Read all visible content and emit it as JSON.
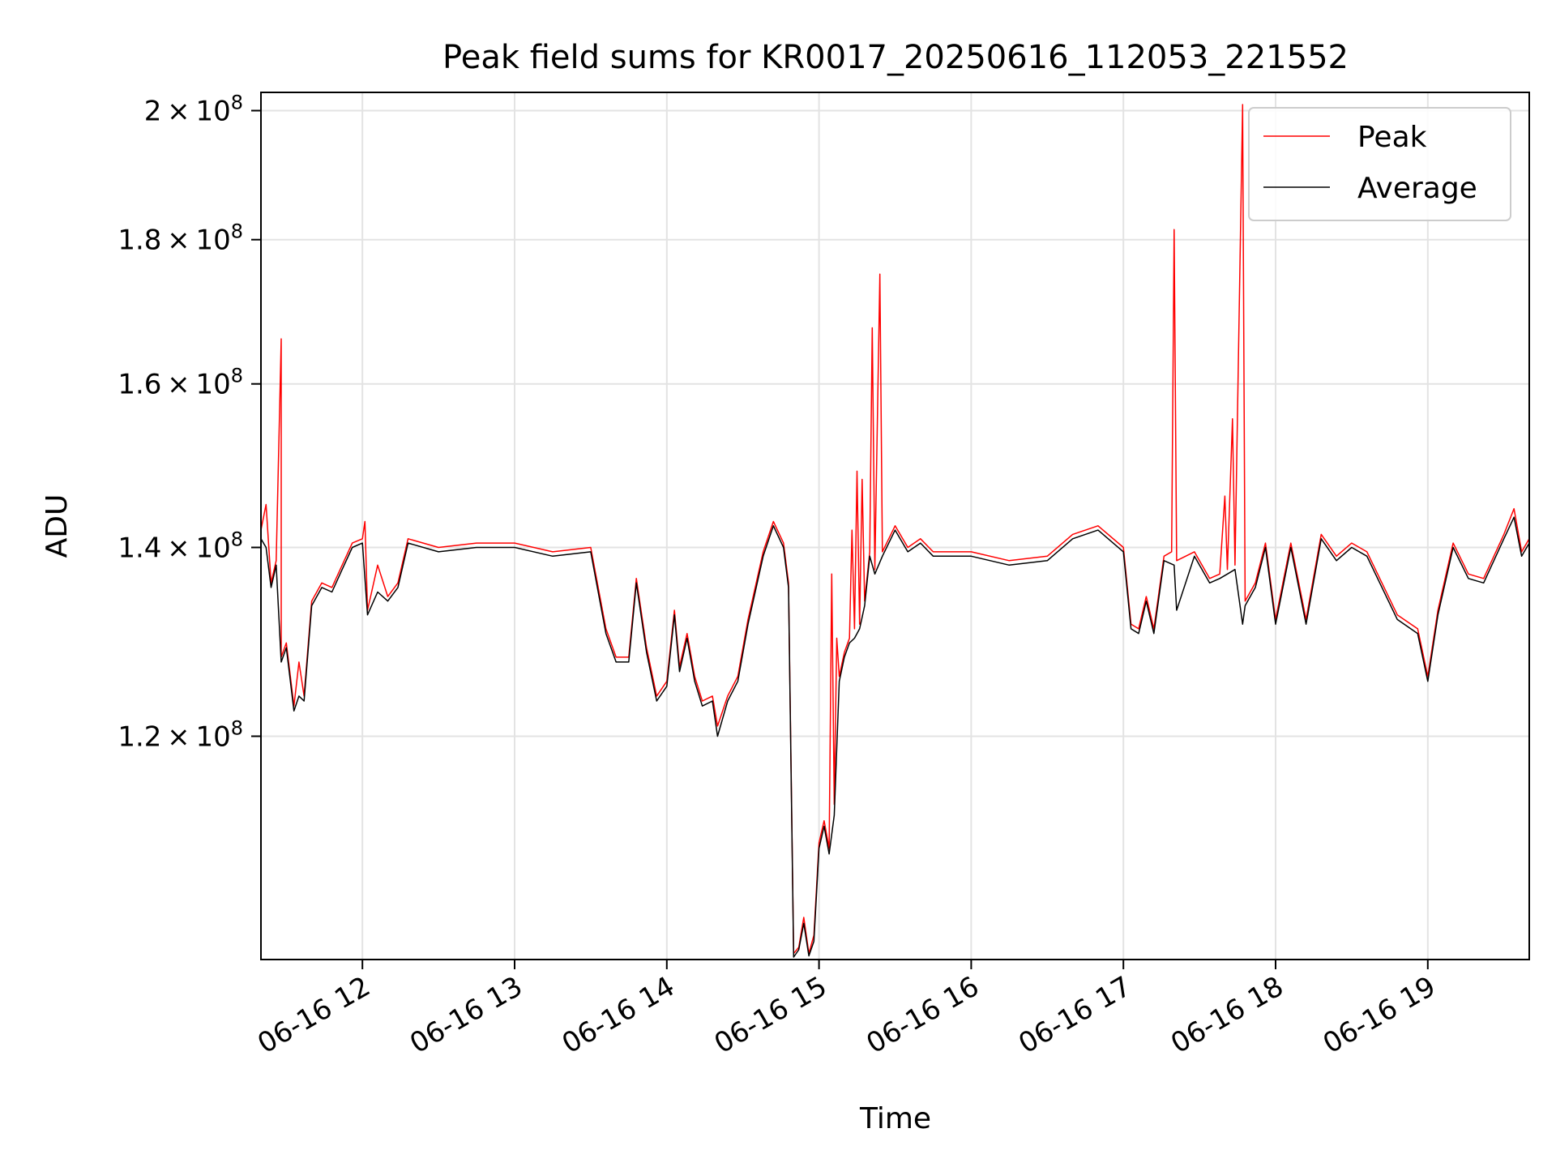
{
  "chart_data": {
    "type": "line",
    "title": "Peak field sums for KR0017_20250616_112053_221552",
    "xlabel": "Time",
    "ylabel": "ADU",
    "y_scale": "log",
    "ylim": [
      100000000,
      203000000
    ],
    "xlim": [
      "2025-06-16 11:20",
      "2025-06-16 19:40"
    ],
    "x_ticks": [
      "06-16 12",
      "06-16 13",
      "06-16 14",
      "06-16 15",
      "06-16 16",
      "06-16 17",
      "06-16 18",
      "06-16 19"
    ],
    "y_ticks": [
      {
        "value": 120000000,
        "mantissa": "1.2",
        "exp": "8"
      },
      {
        "value": 140000000,
        "mantissa": "1.4",
        "exp": "8"
      },
      {
        "value": 160000000,
        "mantissa": "1.6",
        "exp": "8"
      },
      {
        "value": 180000000,
        "mantissa": "1.8",
        "exp": "8"
      },
      {
        "value": 200000000,
        "mantissa": "2",
        "exp": "8"
      }
    ],
    "grid": true,
    "legend_position": "top-right",
    "series": [
      {
        "name": "Peak",
        "color": "#ff0000",
        "points": [
          [
            "2025-06-16 11:20",
            142000000.0
          ],
          [
            "2025-06-16 11:22",
            145000000.0
          ],
          [
            "2025-06-16 11:24",
            136000000.0
          ],
          [
            "2025-06-16 11:26",
            138500000.0
          ],
          [
            "2025-06-16 11:28",
            166000000.0
          ],
          [
            "2025-06-16 11:28",
            128000000.0
          ],
          [
            "2025-06-16 11:30",
            129500000.0
          ],
          [
            "2025-06-16 11:33",
            123000000.0
          ],
          [
            "2025-06-16 11:35",
            127500000.0
          ],
          [
            "2025-06-16 11:37",
            124000000.0
          ],
          [
            "2025-06-16 11:40",
            134000000.0
          ],
          [
            "2025-06-16 11:44",
            136000000.0
          ],
          [
            "2025-06-16 11:48",
            135500000.0
          ],
          [
            "2025-06-16 11:52",
            138000000.0
          ],
          [
            "2025-06-16 11:56",
            140500000.0
          ],
          [
            "2025-06-16 12:00",
            141000000.0
          ],
          [
            "2025-06-16 12:01",
            143000000.0
          ],
          [
            "2025-06-16 12:02",
            133000000.0
          ],
          [
            "2025-06-16 12:06",
            138000000.0
          ],
          [
            "2025-06-16 12:10",
            134500000.0
          ],
          [
            "2025-06-16 12:14",
            136000000.0
          ],
          [
            "2025-06-16 12:18",
            141000000.0
          ],
          [
            "2025-06-16 12:30",
            140000000.0
          ],
          [
            "2025-06-16 12:45",
            140500000.0
          ],
          [
            "2025-06-16 13:00",
            140500000.0
          ],
          [
            "2025-06-16 13:15",
            139500000.0
          ],
          [
            "2025-06-16 13:30",
            140000000.0
          ],
          [
            "2025-06-16 13:36",
            131000000.0
          ],
          [
            "2025-06-16 13:40",
            128000000.0
          ],
          [
            "2025-06-16 13:45",
            128000000.0
          ],
          [
            "2025-06-16 13:48",
            136500000.0
          ],
          [
            "2025-06-16 13:52",
            129000000.0
          ],
          [
            "2025-06-16 13:56",
            124000000.0
          ],
          [
            "2025-06-16 14:00",
            125500000.0
          ],
          [
            "2025-06-16 14:03",
            133000000.0
          ],
          [
            "2025-06-16 14:05",
            127000000.0
          ],
          [
            "2025-06-16 14:08",
            130500000.0
          ],
          [
            "2025-06-16 14:11",
            126000000.0
          ],
          [
            "2025-06-16 14:14",
            123500000.0
          ],
          [
            "2025-06-16 14:18",
            124000000.0
          ],
          [
            "2025-06-16 14:20",
            121000000.0
          ],
          [
            "2025-06-16 14:24",
            124000000.0
          ],
          [
            "2025-06-16 14:28",
            126000000.0
          ],
          [
            "2025-06-16 14:32",
            132000000.0
          ],
          [
            "2025-06-16 14:38",
            139500000.0
          ],
          [
            "2025-06-16 14:42",
            143000000.0
          ],
          [
            "2025-06-16 14:46",
            140500000.0
          ],
          [
            "2025-06-16 14:48",
            136000000.0
          ],
          [
            "2025-06-16 14:50",
            100500000.0
          ],
          [
            "2025-06-16 14:52",
            101000000.0
          ],
          [
            "2025-06-16 14:54",
            103500000.0
          ],
          [
            "2025-06-16 14:56",
            100500000.0
          ],
          [
            "2025-06-16 14:58",
            102000000.0
          ],
          [
            "2025-06-16 15:00",
            110000000.0
          ],
          [
            "2025-06-16 15:02",
            112000000.0
          ],
          [
            "2025-06-16 15:04",
            109500000.0
          ],
          [
            "2025-06-16 15:05",
            137000000.0
          ],
          [
            "2025-06-16 15:06",
            113500000.0
          ],
          [
            "2025-06-16 15:07",
            130000000.0
          ],
          [
            "2025-06-16 15:08",
            126000000.0
          ],
          [
            "2025-06-16 15:10",
            128500000.0
          ],
          [
            "2025-06-16 15:12",
            130000000.0
          ],
          [
            "2025-06-16 15:13",
            142000000.0
          ],
          [
            "2025-06-16 15:14",
            131000000.0
          ],
          [
            "2025-06-16 15:15",
            149000000.0
          ],
          [
            "2025-06-16 15:16",
            131500000.0
          ],
          [
            "2025-06-16 15:17",
            148000000.0
          ],
          [
            "2025-06-16 15:18",
            134000000.0
          ],
          [
            "2025-06-16 15:20",
            139500000.0
          ],
          [
            "2025-06-16 15:21",
            167500000.0
          ],
          [
            "2025-06-16 15:22",
            137500000.0
          ],
          [
            "2025-06-16 15:24",
            175000000.0
          ],
          [
            "2025-06-16 15:25",
            139500000.0
          ],
          [
            "2025-06-16 15:30",
            142500000.0
          ],
          [
            "2025-06-16 15:35",
            140000000.0
          ],
          [
            "2025-06-16 15:40",
            141000000.0
          ],
          [
            "2025-06-16 15:45",
            139500000.0
          ],
          [
            "2025-06-16 16:00",
            139500000.0
          ],
          [
            "2025-06-16 16:15",
            138500000.0
          ],
          [
            "2025-06-16 16:30",
            139000000.0
          ],
          [
            "2025-06-16 16:40",
            141500000.0
          ],
          [
            "2025-06-16 16:50",
            142500000.0
          ],
          [
            "2025-06-16 17:00",
            140000000.0
          ],
          [
            "2025-06-16 17:03",
            131500000.0
          ],
          [
            "2025-06-16 17:06",
            131000000.0
          ],
          [
            "2025-06-16 17:09",
            134500000.0
          ],
          [
            "2025-06-16 17:12",
            131000000.0
          ],
          [
            "2025-06-16 17:16",
            139000000.0
          ],
          [
            "2025-06-16 17:19",
            139500000.0
          ],
          [
            "2025-06-16 17:20",
            181500000.0
          ],
          [
            "2025-06-16 17:21",
            138500000.0
          ],
          [
            "2025-06-16 17:28",
            139500000.0
          ],
          [
            "2025-06-16 17:34",
            136500000.0
          ],
          [
            "2025-06-16 17:38",
            137000000.0
          ],
          [
            "2025-06-16 17:40",
            146000000.0
          ],
          [
            "2025-06-16 17:41",
            137500000.0
          ],
          [
            "2025-06-16 17:43",
            155500000.0
          ],
          [
            "2025-06-16 17:44",
            138000000.0
          ],
          [
            "2025-06-16 17:47",
            201000000.0
          ],
          [
            "2025-06-16 17:48",
            134000000.0
          ],
          [
            "2025-06-16 17:52",
            136000000.0
          ],
          [
            "2025-06-16 17:56",
            140500000.0
          ],
          [
            "2025-06-16 18:00",
            132000000.0
          ],
          [
            "2025-06-16 18:06",
            140500000.0
          ],
          [
            "2025-06-16 18:12",
            132000000.0
          ],
          [
            "2025-06-16 18:18",
            141500000.0
          ],
          [
            "2025-06-16 18:24",
            139000000.0
          ],
          [
            "2025-06-16 18:30",
            140500000.0
          ],
          [
            "2025-06-16 18:36",
            139500000.0
          ],
          [
            "2025-06-16 18:48",
            132500000.0
          ],
          [
            "2025-06-16 18:56",
            131000000.0
          ],
          [
            "2025-06-16 19:00",
            126000000.0
          ],
          [
            "2025-06-16 19:04",
            133000000.0
          ],
          [
            "2025-06-16 19:10",
            140500000.0
          ],
          [
            "2025-06-16 19:16",
            137000000.0
          ],
          [
            "2025-06-16 19:22",
            136500000.0
          ],
          [
            "2025-06-16 19:30",
            141500000.0
          ],
          [
            "2025-06-16 19:34",
            144500000.0
          ],
          [
            "2025-06-16 19:37",
            139500000.0
          ],
          [
            "2025-06-16 19:40",
            141000000.0
          ]
        ]
      },
      {
        "name": "Average",
        "color": "#000000",
        "points": [
          [
            "2025-06-16 11:20",
            141000000.0
          ],
          [
            "2025-06-16 11:22",
            140000000.0
          ],
          [
            "2025-06-16 11:24",
            135500000.0
          ],
          [
            "2025-06-16 11:26",
            138000000.0
          ],
          [
            "2025-06-16 11:28",
            127500000.0
          ],
          [
            "2025-06-16 11:30",
            129000000.0
          ],
          [
            "2025-06-16 11:33",
            122500000.0
          ],
          [
            "2025-06-16 11:35",
            124000000.0
          ],
          [
            "2025-06-16 11:37",
            123500000.0
          ],
          [
            "2025-06-16 11:40",
            133500000.0
          ],
          [
            "2025-06-16 11:44",
            135500000.0
          ],
          [
            "2025-06-16 11:48",
            135000000.0
          ],
          [
            "2025-06-16 11:52",
            137500000.0
          ],
          [
            "2025-06-16 11:56",
            140000000.0
          ],
          [
            "2025-06-16 12:00",
            140500000.0
          ],
          [
            "2025-06-16 12:02",
            132500000.0
          ],
          [
            "2025-06-16 12:06",
            135000000.0
          ],
          [
            "2025-06-16 12:10",
            134000000.0
          ],
          [
            "2025-06-16 12:14",
            135500000.0
          ],
          [
            "2025-06-16 12:18",
            140500000.0
          ],
          [
            "2025-06-16 12:30",
            139500000.0
          ],
          [
            "2025-06-16 12:45",
            140000000.0
          ],
          [
            "2025-06-16 13:00",
            140000000.0
          ],
          [
            "2025-06-16 13:15",
            139000000.0
          ],
          [
            "2025-06-16 13:30",
            139500000.0
          ],
          [
            "2025-06-16 13:36",
            130500000.0
          ],
          [
            "2025-06-16 13:40",
            127500000.0
          ],
          [
            "2025-06-16 13:45",
            127500000.0
          ],
          [
            "2025-06-16 13:48",
            136000000.0
          ],
          [
            "2025-06-16 13:52",
            128500000.0
          ],
          [
            "2025-06-16 13:56",
            123500000.0
          ],
          [
            "2025-06-16 14:00",
            125000000.0
          ],
          [
            "2025-06-16 14:03",
            132500000.0
          ],
          [
            "2025-06-16 14:05",
            126500000.0
          ],
          [
            "2025-06-16 14:08",
            130000000.0
          ],
          [
            "2025-06-16 14:11",
            125500000.0
          ],
          [
            "2025-06-16 14:14",
            123000000.0
          ],
          [
            "2025-06-16 14:18",
            123500000.0
          ],
          [
            "2025-06-16 14:20",
            120000000.0
          ],
          [
            "2025-06-16 14:24",
            123500000.0
          ],
          [
            "2025-06-16 14:28",
            125500000.0
          ],
          [
            "2025-06-16 14:32",
            131500000.0
          ],
          [
            "2025-06-16 14:38",
            139000000.0
          ],
          [
            "2025-06-16 14:42",
            142500000.0
          ],
          [
            "2025-06-16 14:46",
            140000000.0
          ],
          [
            "2025-06-16 14:48",
            135500000.0
          ],
          [
            "2025-06-16 14:50",
            100200000.0
          ],
          [
            "2025-06-16 14:52",
            100800000.0
          ],
          [
            "2025-06-16 14:54",
            103000000.0
          ],
          [
            "2025-06-16 14:56",
            100300000.0
          ],
          [
            "2025-06-16 14:58",
            101500000.0
          ],
          [
            "2025-06-16 15:00",
            109500000.0
          ],
          [
            "2025-06-16 15:02",
            111500000.0
          ],
          [
            "2025-06-16 15:04",
            109000000.0
          ],
          [
            "2025-06-16 15:06",
            112500000.0
          ],
          [
            "2025-06-16 15:08",
            125500000.0
          ],
          [
            "2025-06-16 15:10",
            128000000.0
          ],
          [
            "2025-06-16 15:12",
            129500000.0
          ],
          [
            "2025-06-16 15:14",
            130000000.0
          ],
          [
            "2025-06-16 15:16",
            131000000.0
          ],
          [
            "2025-06-16 15:18",
            133500000.0
          ],
          [
            "2025-06-16 15:20",
            139000000.0
          ],
          [
            "2025-06-16 15:22",
            137000000.0
          ],
          [
            "2025-06-16 15:25",
            139000000.0
          ],
          [
            "2025-06-16 15:30",
            142000000.0
          ],
          [
            "2025-06-16 15:35",
            139500000.0
          ],
          [
            "2025-06-16 15:40",
            140500000.0
          ],
          [
            "2025-06-16 15:45",
            139000000.0
          ],
          [
            "2025-06-16 16:00",
            139000000.0
          ],
          [
            "2025-06-16 16:15",
            138000000.0
          ],
          [
            "2025-06-16 16:30",
            138500000.0
          ],
          [
            "2025-06-16 16:40",
            141000000.0
          ],
          [
            "2025-06-16 16:50",
            142000000.0
          ],
          [
            "2025-06-16 17:00",
            139500000.0
          ],
          [
            "2025-06-16 17:03",
            131000000.0
          ],
          [
            "2025-06-16 17:06",
            130500000.0
          ],
          [
            "2025-06-16 17:09",
            134000000.0
          ],
          [
            "2025-06-16 17:12",
            130500000.0
          ],
          [
            "2025-06-16 17:16",
            138500000.0
          ],
          [
            "2025-06-16 17:20",
            138000000.0
          ],
          [
            "2025-06-16 17:21",
            133000000.0
          ],
          [
            "2025-06-16 17:28",
            139000000.0
          ],
          [
            "2025-06-16 17:34",
            136000000.0
          ],
          [
            "2025-06-16 17:38",
            136500000.0
          ],
          [
            "2025-06-16 17:41",
            137000000.0
          ],
          [
            "2025-06-16 17:44",
            137500000.0
          ],
          [
            "2025-06-16 17:47",
            131500000.0
          ],
          [
            "2025-06-16 17:48",
            133500000.0
          ],
          [
            "2025-06-16 17:52",
            135500000.0
          ],
          [
            "2025-06-16 17:56",
            140000000.0
          ],
          [
            "2025-06-16 18:00",
            131500000.0
          ],
          [
            "2025-06-16 18:06",
            140000000.0
          ],
          [
            "2025-06-16 18:12",
            131500000.0
          ],
          [
            "2025-06-16 18:18",
            141000000.0
          ],
          [
            "2025-06-16 18:24",
            138500000.0
          ],
          [
            "2025-06-16 18:30",
            140000000.0
          ],
          [
            "2025-06-16 18:36",
            139000000.0
          ],
          [
            "2025-06-16 18:48",
            132000000.0
          ],
          [
            "2025-06-16 18:56",
            130500000.0
          ],
          [
            "2025-06-16 19:00",
            125500000.0
          ],
          [
            "2025-06-16 19:04",
            132500000.0
          ],
          [
            "2025-06-16 19:10",
            140000000.0
          ],
          [
            "2025-06-16 19:16",
            136500000.0
          ],
          [
            "2025-06-16 19:22",
            136000000.0
          ],
          [
            "2025-06-16 19:30",
            141000000.0
          ],
          [
            "2025-06-16 19:34",
            143500000.0
          ],
          [
            "2025-06-16 19:37",
            139000000.0
          ],
          [
            "2025-06-16 19:40",
            140500000.0
          ]
        ]
      }
    ]
  }
}
